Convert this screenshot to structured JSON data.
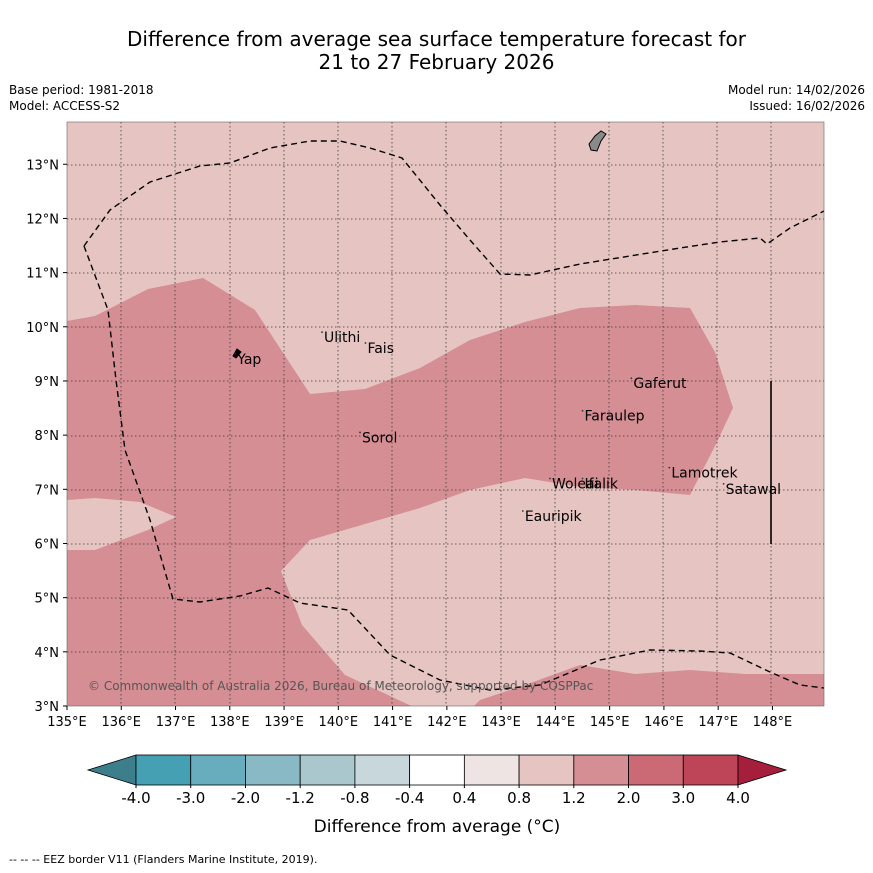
{
  "title": {
    "line1": "Difference from average sea surface temperature forecast for",
    "line2": "21 to 27 February 2026"
  },
  "info": {
    "base_period": "Base period: 1981-2018",
    "model": "Model: ACCESS-S2",
    "model_run": "Model run: 14/02/2026",
    "issued": "Issued: 16/02/2026"
  },
  "axes": {
    "x_ticks": [
      "135°E",
      "136°E",
      "137°E",
      "138°E",
      "139°E",
      "140°E",
      "141°E",
      "142°E",
      "143°E",
      "144°E",
      "145°E",
      "146°E",
      "147°E",
      "148°E"
    ],
    "y_ticks": [
      "13°N",
      "12°N",
      "11°N",
      "10°N",
      "9°N",
      "8°N",
      "7°N",
      "6°N",
      "5°N",
      "4°N",
      "3°N"
    ]
  },
  "places": [
    {
      "name": "Ulithi",
      "label": "Ulithi",
      "lon": 139.7,
      "lat": 9.9
    },
    {
      "name": "Fais",
      "label": "Fais",
      "lon": 140.5,
      "lat": 9.7
    },
    {
      "name": "Yap",
      "label": "Yap",
      "lon": 138.1,
      "lat": 9.5
    },
    {
      "name": "Gaferut",
      "label": "Gaferut",
      "lon": 145.4,
      "lat": 9.05
    },
    {
      "name": "Faraulep",
      "label": "Faraulep",
      "lon": 144.5,
      "lat": 8.45
    },
    {
      "name": "Sorol",
      "label": "Sorol",
      "lon": 140.4,
      "lat": 8.05
    },
    {
      "name": "Woleai",
      "label": "Woleai",
      "lon": 143.9,
      "lat": 7.2
    },
    {
      "name": "Ifalik",
      "label": "Ifalik",
      "lon": 144.5,
      "lat": 7.2
    },
    {
      "name": "Lamotrek",
      "label": "Lamotrek",
      "lon": 146.1,
      "lat": 7.4
    },
    {
      "name": "Satawal",
      "label": "Satawal",
      "lon": 147.1,
      "lat": 7.1
    },
    {
      "name": "Eauripik",
      "label": "Eauripik",
      "lon": 143.4,
      "lat": 6.6
    }
  ],
  "copyright": "© Commonwealth of Australia 2026, Bureau of Meteorology, supported by COSPPac",
  "colorbar": {
    "label": "Difference from average (°C)",
    "tick_labels": [
      "-4.0",
      "-3.0",
      "-2.0",
      "-1.2",
      "-0.8",
      "-0.4",
      "0.4",
      "0.8",
      "1.2",
      "2.0",
      "3.0",
      "4.0"
    ],
    "colors": {
      "under": "#3c7e8c",
      "bins": [
        "#44a0b2",
        "#68adbd",
        "#8ab9c6",
        "#aac7ce",
        "#c8d7dc",
        "#ffffff",
        "#ede4e3",
        "#e6c4c1",
        "#d58e94",
        "#cb6a74",
        "#bd4557"
      ],
      "over": "#a51e3c"
    }
  },
  "footer": "--  --  -- EEZ border V11 (Flanders Marine Institute, 2019)."
}
